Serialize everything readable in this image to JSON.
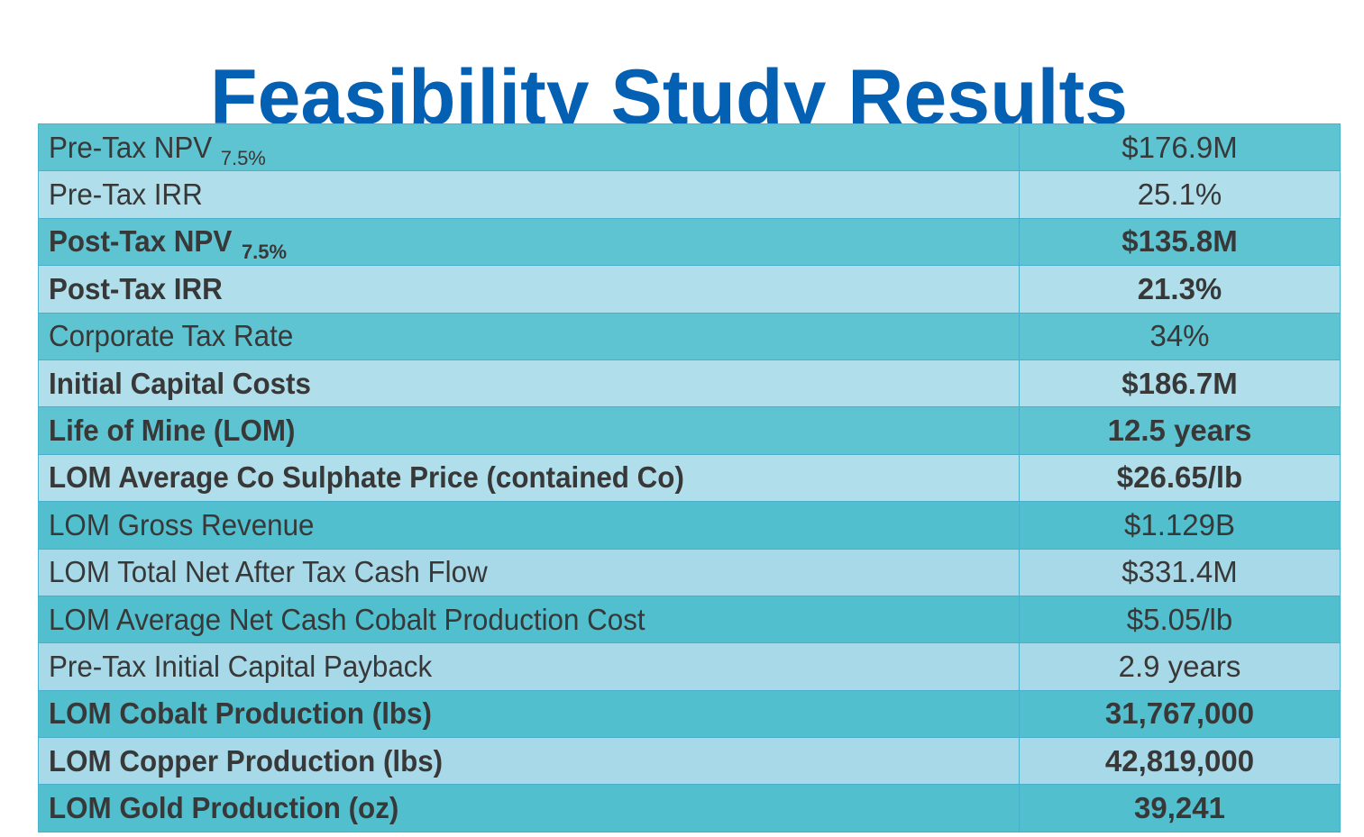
{
  "page": {
    "title": "Feasibility Study Results"
  },
  "colors": {
    "title": "#0460b3",
    "row_dark": "#5ec4d2",
    "row_light": "#b0dfeb",
    "text": "#383838"
  },
  "table": {
    "rows": [
      {
        "label": "Pre-Tax NPV",
        "subscript": "7.5%",
        "value": "$176.9M",
        "bold": false
      },
      {
        "label": "Pre-Tax IRR",
        "subscript": "",
        "value": "25.1%",
        "bold": false
      },
      {
        "label": "Post-Tax NPV",
        "subscript": "7.5%",
        "value": "$135.8M",
        "bold": true
      },
      {
        "label": "Post-Tax IRR",
        "subscript": "",
        "value": "21.3%",
        "bold": true
      },
      {
        "label": "Corporate Tax Rate",
        "subscript": "",
        "value": "34%",
        "bold": false
      },
      {
        "label": "Initial Capital Costs",
        "subscript": "",
        "value": "$186.7M",
        "bold": true
      },
      {
        "label": "Life of Mine (LOM)",
        "subscript": "",
        "value": "12.5 years",
        "bold": true
      },
      {
        "label": "LOM Average Co Sulphate Price (contained Co)",
        "subscript": "",
        "value": "$26.65/lb",
        "bold": true
      },
      {
        "label": "LOM Gross Revenue",
        "subscript": "",
        "value": "$1.129B",
        "bold": false
      },
      {
        "label": "LOM Total Net After Tax Cash Flow",
        "subscript": "",
        "value": "$331.4M",
        "bold": false
      },
      {
        "label": "LOM Average Net Cash Cobalt Production Cost",
        "subscript": "",
        "value": "$5.05/lb",
        "bold": false
      },
      {
        "label": "Pre-Tax Initial Capital Payback",
        "subscript": "",
        "value": "2.9 years",
        "bold": false
      },
      {
        "label": "LOM Cobalt Production (lbs)",
        "subscript": "",
        "value": "31,767,000",
        "bold": true
      },
      {
        "label": "LOM Copper Production (lbs)",
        "subscript": "",
        "value": "42,819,000",
        "bold": true
      },
      {
        "label": "LOM Gold Production (oz)",
        "subscript": "",
        "value": "39,241",
        "bold": true
      }
    ]
  }
}
